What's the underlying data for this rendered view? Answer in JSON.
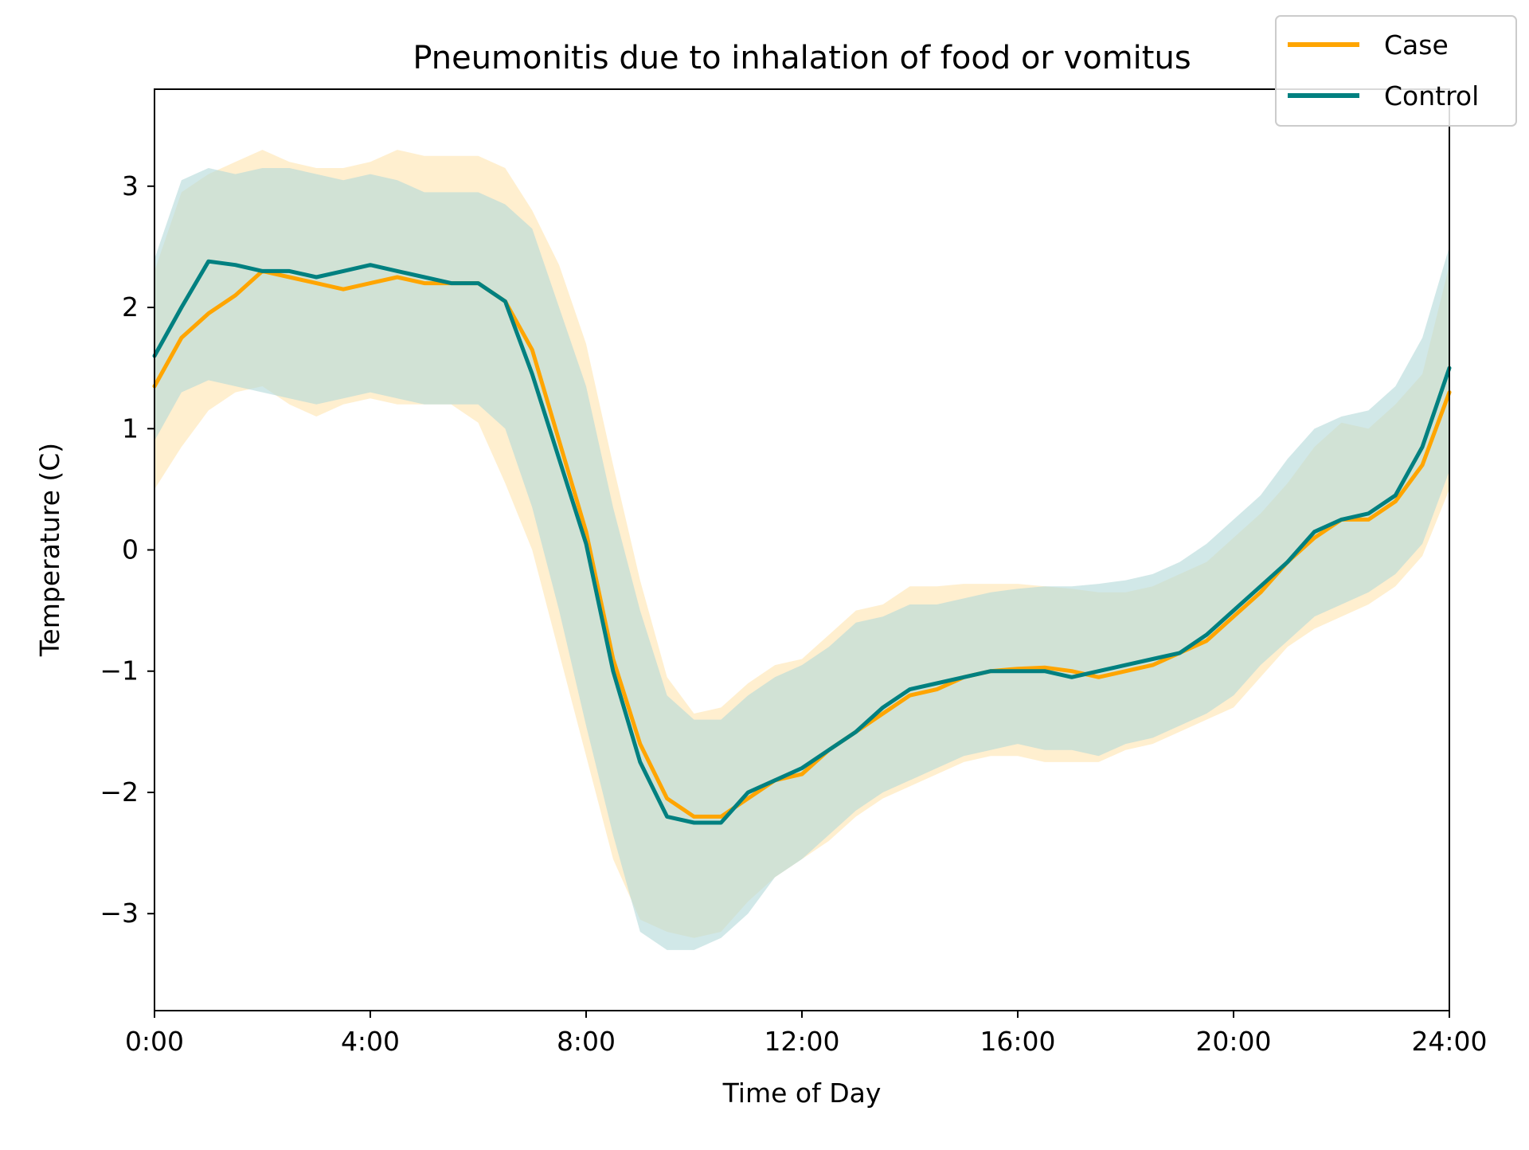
{
  "chart_data": {
    "type": "line",
    "title": "Pneumonitis due to inhalation of food or vomitus",
    "xlabel": "Time of Day",
    "ylabel": "Temperature (C)",
    "xlim": [
      0,
      24
    ],
    "ylim": [
      -3.8,
      3.8
    ],
    "x_ticks": [
      {
        "value": 0,
        "label": "0:00"
      },
      {
        "value": 4,
        "label": "4:00"
      },
      {
        "value": 8,
        "label": "8:00"
      },
      {
        "value": 12,
        "label": "12:00"
      },
      {
        "value": 16,
        "label": "16:00"
      },
      {
        "value": 20,
        "label": "20:00"
      },
      {
        "value": 24,
        "label": "24:00"
      }
    ],
    "y_ticks": [
      {
        "value": 3,
        "label": "3"
      },
      {
        "value": 2,
        "label": "2"
      },
      {
        "value": 1,
        "label": "1"
      },
      {
        "value": 0,
        "label": "0"
      },
      {
        "value": -1,
        "label": "−1"
      },
      {
        "value": -2,
        "label": "−2"
      },
      {
        "value": -3,
        "label": "−3"
      }
    ],
    "grid": false,
    "legend": {
      "placement": "top-right"
    },
    "x": [
      0,
      0.5,
      1,
      1.5,
      2,
      2.5,
      3,
      3.5,
      4,
      4.5,
      5,
      5.5,
      6,
      6.5,
      7,
      7.5,
      8,
      8.5,
      9,
      9.5,
      10,
      10.5,
      11,
      11.5,
      12,
      12.5,
      13,
      13.5,
      14,
      14.5,
      15,
      15.5,
      16,
      16.5,
      17,
      17.5,
      18,
      18.5,
      19,
      19.5,
      20,
      20.5,
      21,
      21.5,
      22,
      22.5,
      23,
      23.5,
      24
    ],
    "series": [
      {
        "name": "Case",
        "color": "#FFA500",
        "band_color": "#FFE9BF",
        "values": [
          1.35,
          1.75,
          1.95,
          2.1,
          2.3,
          2.25,
          2.2,
          2.15,
          2.2,
          2.25,
          2.2,
          2.2,
          2.2,
          2.05,
          1.65,
          0.9,
          0.15,
          -0.9,
          -1.6,
          -2.05,
          -2.2,
          -2.2,
          -2.05,
          -1.9,
          -1.85,
          -1.65,
          -1.5,
          -1.35,
          -1.2,
          -1.15,
          -1.05,
          -1.0,
          -0.98,
          -0.97,
          -1.0,
          -1.05,
          -1.0,
          -0.95,
          -0.85,
          -0.75,
          -0.55,
          -0.35,
          -0.1,
          0.1,
          0.25,
          0.25,
          0.4,
          0.7,
          1.3
        ],
        "lower": [
          0.5,
          0.85,
          1.15,
          1.3,
          1.35,
          1.2,
          1.1,
          1.2,
          1.25,
          1.2,
          1.2,
          1.2,
          1.05,
          0.55,
          0.0,
          -0.85,
          -1.7,
          -2.55,
          -3.05,
          -3.15,
          -3.2,
          -3.15,
          -2.9,
          -2.7,
          -2.55,
          -2.4,
          -2.2,
          -2.05,
          -1.95,
          -1.85,
          -1.75,
          -1.7,
          -1.7,
          -1.75,
          -1.75,
          -1.75,
          -1.65,
          -1.6,
          -1.5,
          -1.4,
          -1.3,
          -1.05,
          -0.8,
          -0.65,
          -0.55,
          -0.45,
          -0.3,
          -0.05,
          0.5
        ],
        "upper": [
          2.3,
          2.95,
          3.1,
          3.2,
          3.3,
          3.2,
          3.15,
          3.15,
          3.2,
          3.3,
          3.25,
          3.25,
          3.25,
          3.15,
          2.8,
          2.35,
          1.7,
          0.7,
          -0.25,
          -1.05,
          -1.35,
          -1.3,
          -1.1,
          -0.95,
          -0.9,
          -0.7,
          -0.5,
          -0.45,
          -0.3,
          -0.3,
          -0.28,
          -0.28,
          -0.28,
          -0.3,
          -0.32,
          -0.35,
          -0.35,
          -0.3,
          -0.2,
          -0.1,
          0.1,
          0.3,
          0.55,
          0.85,
          1.05,
          1.0,
          1.2,
          1.45,
          2.35
        ]
      },
      {
        "name": "Control",
        "color": "#008080",
        "band_color": "#B2D8D8",
        "values": [
          1.6,
          2.0,
          2.38,
          2.35,
          2.3,
          2.3,
          2.25,
          2.3,
          2.35,
          2.3,
          2.25,
          2.2,
          2.2,
          2.05,
          1.45,
          0.75,
          0.05,
          -1.0,
          -1.75,
          -2.2,
          -2.25,
          -2.25,
          -2.0,
          -1.9,
          -1.8,
          -1.65,
          -1.5,
          -1.3,
          -1.15,
          -1.1,
          -1.05,
          -1.0,
          -1.0,
          -1.0,
          -1.05,
          -1.0,
          -0.95,
          -0.9,
          -0.85,
          -0.7,
          -0.5,
          -0.3,
          -0.1,
          0.15,
          0.25,
          0.3,
          0.45,
          0.85,
          1.5
        ],
        "lower": [
          0.9,
          1.3,
          1.4,
          1.35,
          1.3,
          1.25,
          1.2,
          1.25,
          1.3,
          1.25,
          1.2,
          1.2,
          1.2,
          1.0,
          0.35,
          -0.5,
          -1.45,
          -2.35,
          -3.15,
          -3.3,
          -3.3,
          -3.2,
          -3.0,
          -2.7,
          -2.55,
          -2.35,
          -2.15,
          -2.0,
          -1.9,
          -1.8,
          -1.7,
          -1.65,
          -1.6,
          -1.65,
          -1.65,
          -1.7,
          -1.6,
          -1.55,
          -1.45,
          -1.35,
          -1.2,
          -0.95,
          -0.75,
          -0.55,
          -0.45,
          -0.35,
          -0.2,
          0.05,
          0.65
        ],
        "upper": [
          2.4,
          3.05,
          3.15,
          3.1,
          3.15,
          3.15,
          3.1,
          3.05,
          3.1,
          3.05,
          2.95,
          2.95,
          2.95,
          2.85,
          2.65,
          2.0,
          1.35,
          0.35,
          -0.5,
          -1.2,
          -1.4,
          -1.4,
          -1.2,
          -1.05,
          -0.95,
          -0.8,
          -0.6,
          -0.55,
          -0.45,
          -0.45,
          -0.4,
          -0.35,
          -0.32,
          -0.3,
          -0.3,
          -0.28,
          -0.25,
          -0.2,
          -0.1,
          0.05,
          0.25,
          0.45,
          0.75,
          1.0,
          1.1,
          1.15,
          1.35,
          1.75,
          2.5
        ]
      }
    ]
  }
}
